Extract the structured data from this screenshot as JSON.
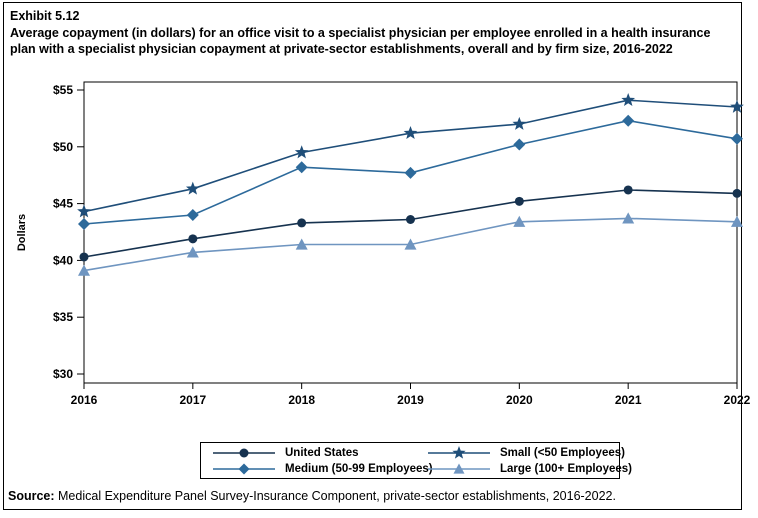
{
  "header": {
    "exhibit": "Exhibit 5.12",
    "title": "Average copayment (in dollars) for an office visit to a specialist physician per employee enrolled in a health insurance plan with a specialist physician copayment at private-sector establishments, overall and by firm size, 2016-2022"
  },
  "chart_data": {
    "type": "line",
    "title": "Average copayment (in dollars) for an office visit to a specialist physician per employee enrolled in a health insurance plan with a specialist physician copayment at private-sector establishments, overall and by firm size, 2016-2022",
    "xlabel": "",
    "ylabel": "Dollars",
    "x": [
      "2016",
      "2017",
      "2018",
      "2019",
      "2020",
      "2021",
      "2022"
    ],
    "ylim": [
      30,
      55
    ],
    "y_ticks": [
      30,
      35,
      40,
      45,
      50,
      55
    ],
    "y_tick_labels": [
      "$30",
      "$35",
      "$40",
      "$45",
      "$50",
      "$55"
    ],
    "grid": false,
    "legend_position": "bottom",
    "legend_order": [
      0,
      2,
      1,
      3
    ],
    "series": [
      {
        "name": "United States",
        "marker": "circle",
        "color": "#16324f",
        "values": [
          40.3,
          41.9,
          43.3,
          43.6,
          45.2,
          46.2,
          45.9
        ]
      },
      {
        "name": "Medium (50-99 Employees)",
        "marker": "diamond",
        "color": "#2d6a9b",
        "values": [
          43.2,
          44.0,
          48.2,
          47.7,
          50.2,
          52.3,
          50.7
        ]
      },
      {
        "name": "Small (<50 Employees)",
        "marker": "star",
        "color": "#1f4e79",
        "values": [
          44.3,
          46.3,
          49.5,
          51.2,
          52.0,
          54.1,
          53.5
        ]
      },
      {
        "name": "Large (100+ Employees)",
        "marker": "triangle",
        "color": "#6f95c0",
        "values": [
          39.1,
          40.7,
          41.4,
          41.4,
          43.4,
          43.7,
          43.4
        ]
      }
    ]
  },
  "source": {
    "label": "Source:",
    "text": " Medical Expenditure Panel Survey-Insurance Component, private-sector establishments, 2016-2022."
  }
}
